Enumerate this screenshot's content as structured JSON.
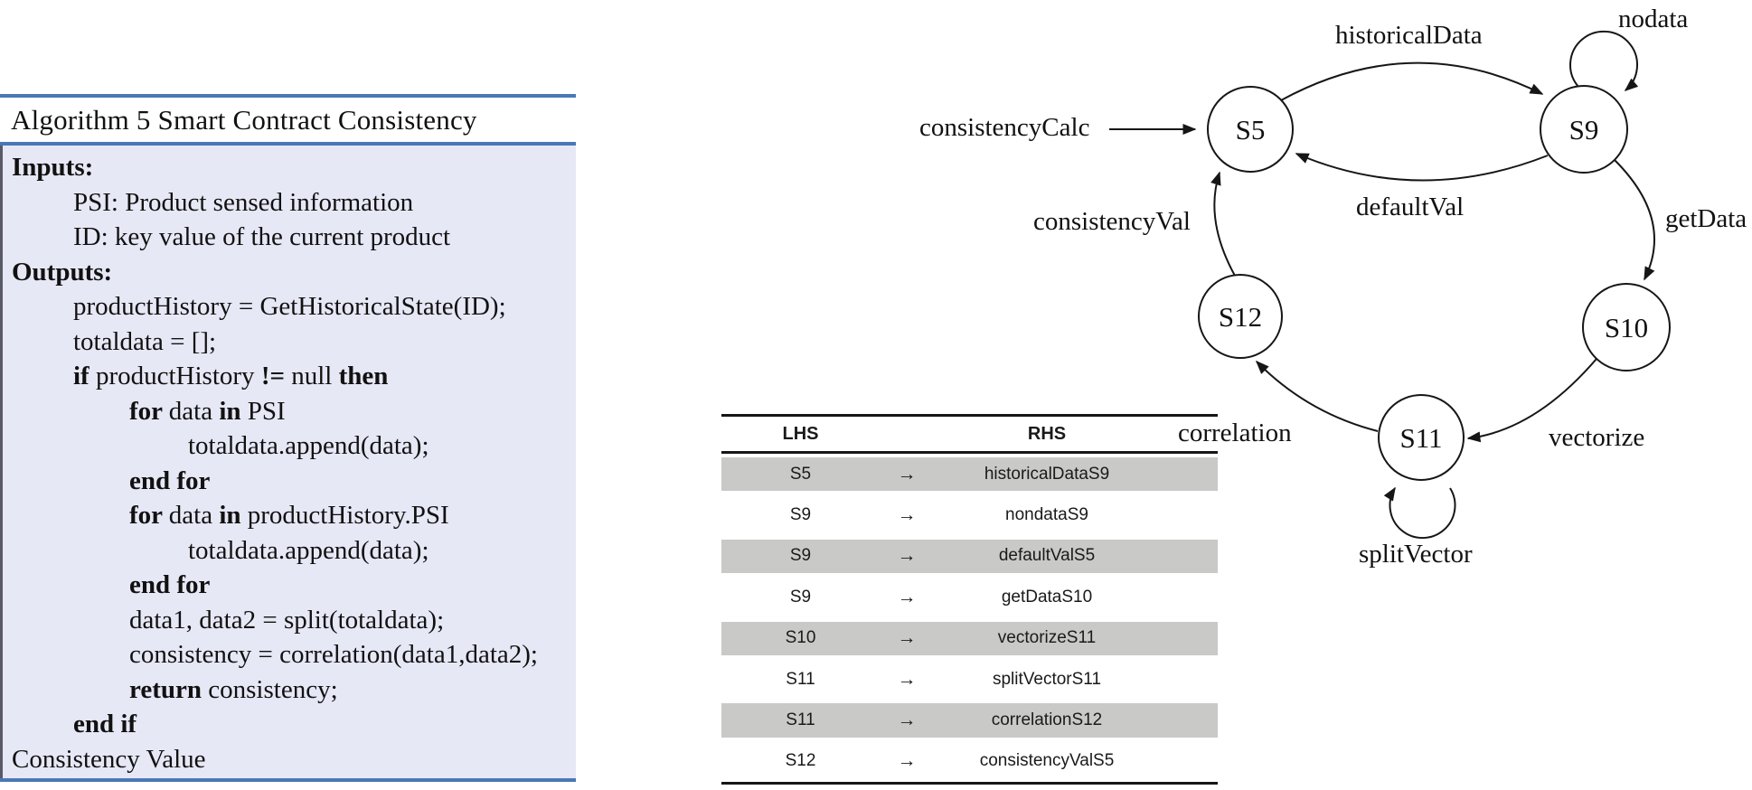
{
  "colors": {
    "accent_blue": "#4878b8",
    "algorithm_background": "#e7e8f6",
    "table_row_gray": "#c9c9c7",
    "ink": "#161616"
  },
  "algorithm": {
    "title": "Algorithm 5 Smart Contract Consistency",
    "lines": [
      {
        "indent": 0,
        "segments": [
          {
            "t": "Inputs:",
            "b": true
          }
        ]
      },
      {
        "indent": 1,
        "segments": [
          {
            "t": "PSI: Product sensed information",
            "b": false
          }
        ]
      },
      {
        "indent": 1,
        "segments": [
          {
            "t": "ID: key value of the current product",
            "b": false
          }
        ]
      },
      {
        "indent": 0,
        "segments": [
          {
            "t": "Outputs:",
            "b": true
          }
        ]
      },
      {
        "indent": 1,
        "segments": [
          {
            "t": "productHistory = GetHistoricalState(ID);",
            "b": false
          }
        ]
      },
      {
        "indent": 1,
        "segments": [
          {
            "t": "totaldata = [];",
            "b": false
          }
        ]
      },
      {
        "indent": 1,
        "segments": [
          {
            "t": "if ",
            "b": true
          },
          {
            "t": "productHistory ",
            "b": false
          },
          {
            "t": "!= ",
            "b": true
          },
          {
            "t": "null ",
            "b": false
          },
          {
            "t": "then",
            "b": true
          }
        ]
      },
      {
        "indent": 2,
        "segments": [
          {
            "t": "for ",
            "b": true
          },
          {
            "t": "data ",
            "b": false
          },
          {
            "t": "in ",
            "b": true
          },
          {
            "t": "PSI",
            "b": false
          }
        ]
      },
      {
        "indent": 3,
        "segments": [
          {
            "t": "totaldata.append(data);",
            "b": false
          }
        ]
      },
      {
        "indent": 2,
        "segments": [
          {
            "t": "end for",
            "b": true
          }
        ]
      },
      {
        "indent": 2,
        "segments": [
          {
            "t": "for ",
            "b": true
          },
          {
            "t": "data ",
            "b": false
          },
          {
            "t": "in ",
            "b": true
          },
          {
            "t": "productHistory.PSI",
            "b": false
          }
        ]
      },
      {
        "indent": 3,
        "segments": [
          {
            "t": "totaldata.append(data);",
            "b": false
          }
        ]
      },
      {
        "indent": 2,
        "segments": [
          {
            "t": "end for",
            "b": true
          }
        ]
      },
      {
        "indent": 2,
        "segments": [
          {
            "t": "data1, data2 = split(totaldata);",
            "b": false
          }
        ]
      },
      {
        "indent": 2,
        "segments": [
          {
            "t": "consistency = correlation(data1,data2);",
            "b": false
          }
        ]
      },
      {
        "indent": 2,
        "segments": [
          {
            "t": "return ",
            "b": true
          },
          {
            "t": "consistency;",
            "b": false
          }
        ]
      },
      {
        "indent": 1,
        "segments": [
          {
            "t": "end if",
            "b": true
          }
        ]
      },
      {
        "indent": 0,
        "segments": [
          {
            "t": "Consistency Value",
            "b": false
          }
        ]
      }
    ]
  },
  "transition_table": {
    "headers": {
      "lhs": "LHS",
      "rhs": "RHS"
    },
    "arrow": "→",
    "rows": [
      {
        "lhs": "S5",
        "rhs": "historicalDataS9"
      },
      {
        "lhs": "S9",
        "rhs": "nondataS9"
      },
      {
        "lhs": "S9",
        "rhs": "defaultValS5"
      },
      {
        "lhs": "S9",
        "rhs": "getDataS10"
      },
      {
        "lhs": "S10",
        "rhs": "vectorizeS11"
      },
      {
        "lhs": "S11",
        "rhs": "splitVectorS11"
      },
      {
        "lhs": "S11",
        "rhs": "correlationS12"
      },
      {
        "lhs": "S12",
        "rhs": "consistencyValS5"
      }
    ]
  },
  "diagram": {
    "states": [
      {
        "id": "S5"
      },
      {
        "id": "S9"
      },
      {
        "id": "S10"
      },
      {
        "id": "S11"
      },
      {
        "id": "S12"
      }
    ],
    "edge_labels": {
      "start": "consistencyCalc",
      "historicalData": "historicalData",
      "nodata": "nodata",
      "defaultVal": "defaultVal",
      "getData": "getData",
      "consistencyVal": "consistencyVal",
      "correlation": "correlation",
      "vectorize": "vectorize",
      "splitVector": "splitVector"
    }
  }
}
